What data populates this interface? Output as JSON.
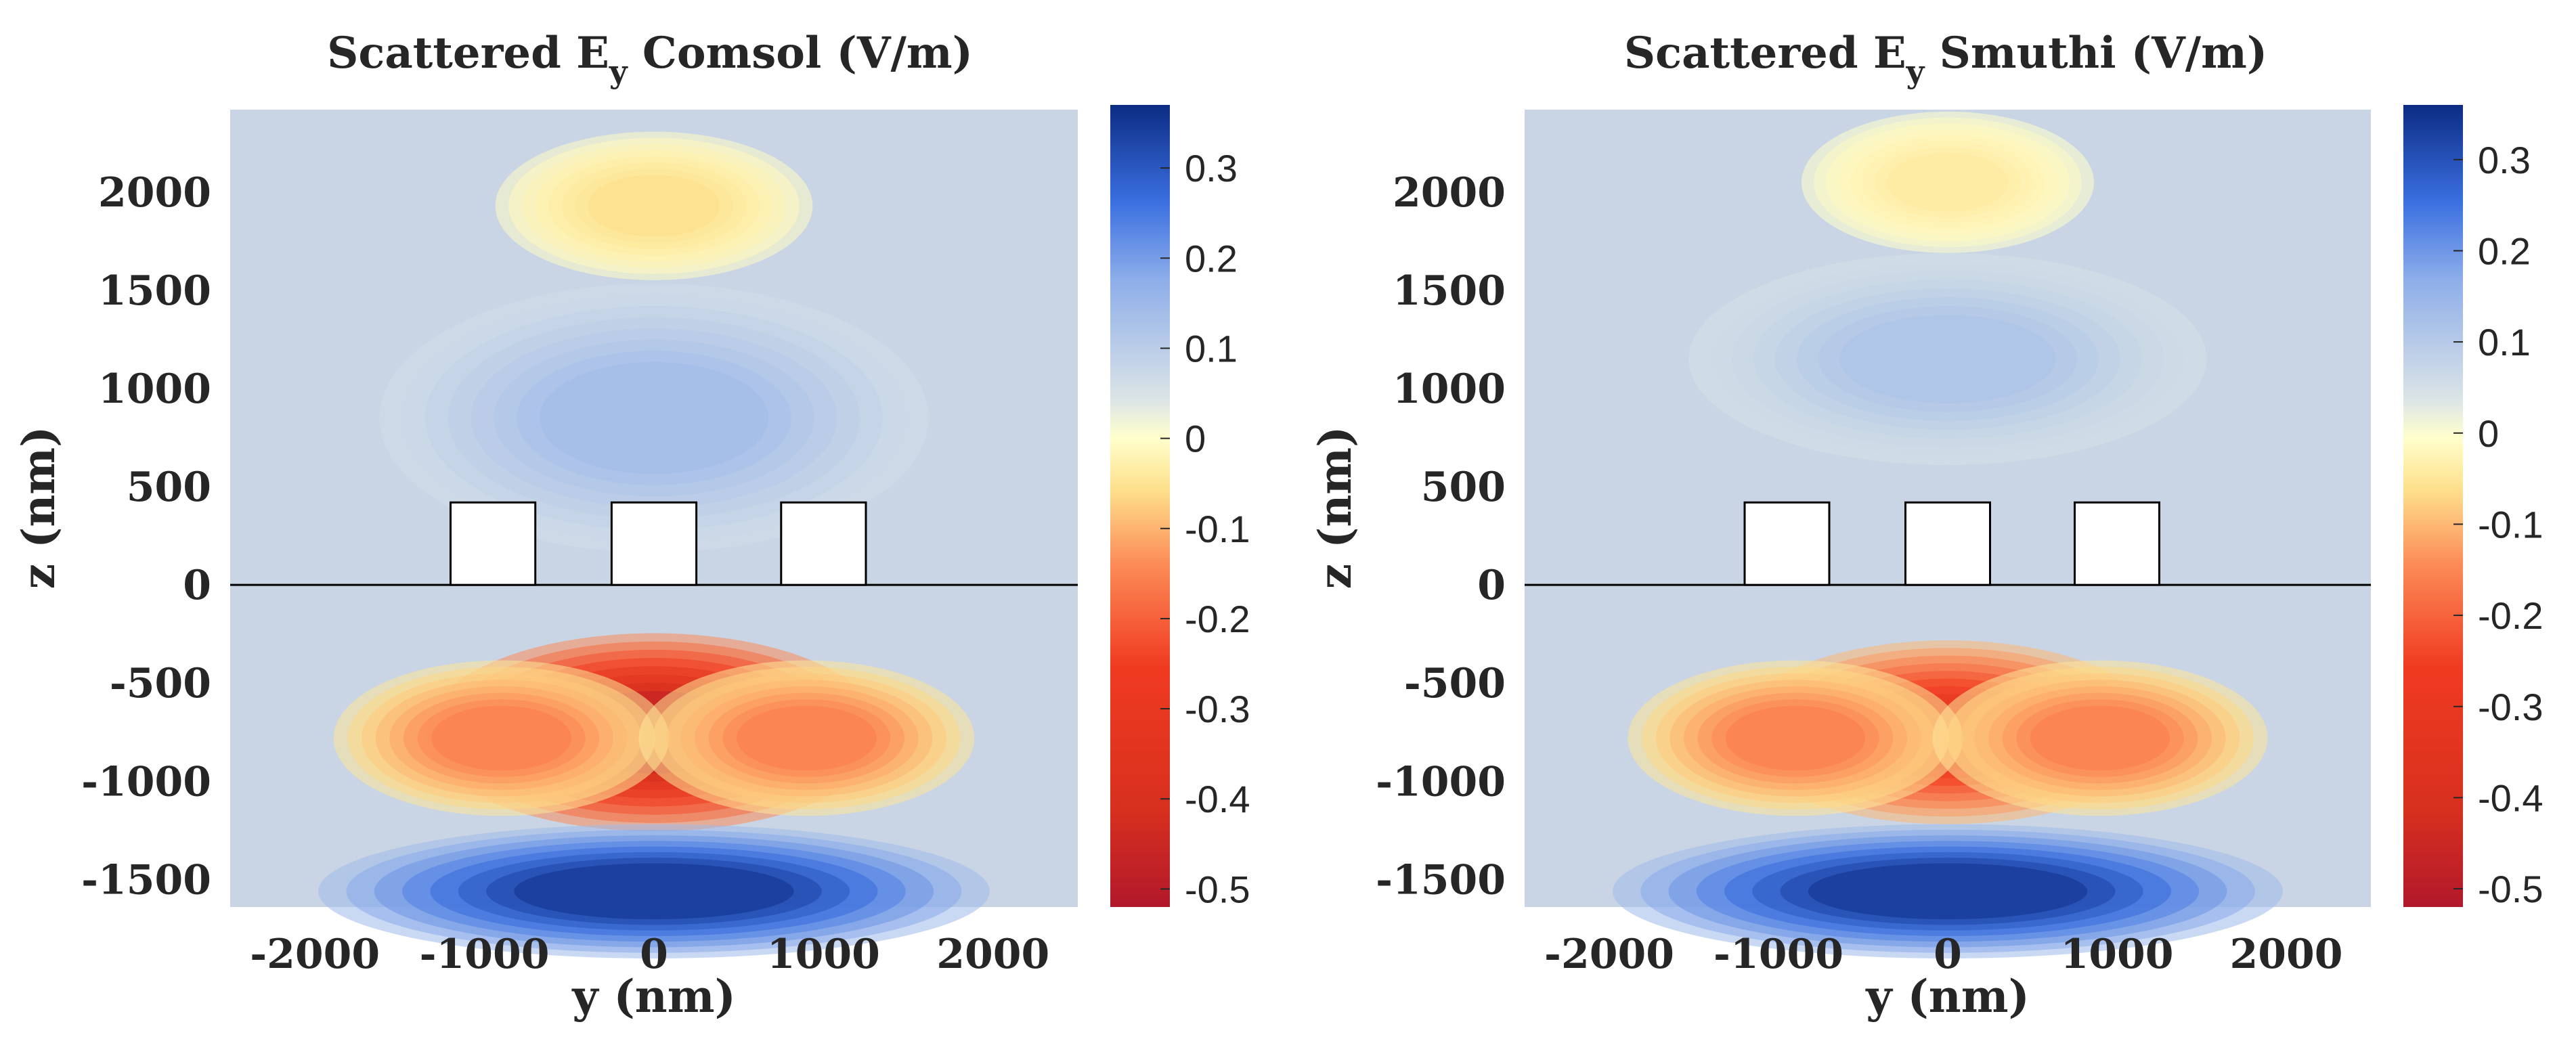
{
  "chart_data": [
    {
      "type": "heatmap",
      "title": {
        "prefix": "Scattered E",
        "sub": "y",
        "suffix": " Comsol (V/m)"
      },
      "xlabel": "y (nm)",
      "ylabel": "z (nm)",
      "xlim": [
        -2500,
        2500
      ],
      "ylim": [
        -1640,
        2420
      ],
      "xticks": [
        -2000,
        -1000,
        0,
        1000,
        2000
      ],
      "xtick_labels": [
        "-2000",
        "-1000",
        "0",
        "1000",
        "2000"
      ],
      "yticks": [
        2000,
        1500,
        1000,
        500,
        0,
        -500,
        -1000,
        -1500
      ],
      "ytick_labels": [
        "2000",
        "1500",
        "1000",
        "500",
        "0",
        "-500",
        "-1000",
        "-1500"
      ],
      "colorbar": {
        "range": [
          -0.52,
          0.37
        ],
        "ticks": [
          0.3,
          0.2,
          0.1,
          0,
          -0.1,
          -0.2,
          -0.3,
          -0.4,
          -0.5
        ],
        "tick_labels": [
          "0.3",
          "0.2",
          "0.1",
          "0",
          "-0.1",
          "-0.2",
          "-0.3",
          "-0.4",
          "-0.5"
        ]
      },
      "interface_z": 0,
      "scatterers": [
        {
          "y_min": -1200,
          "y_max": -700,
          "z_min": 0,
          "z_max": 420
        },
        {
          "y_min": -250,
          "y_max": 250,
          "z_min": 0,
          "z_max": 420
        },
        {
          "y_min": 750,
          "y_max": 1250,
          "z_min": 0,
          "z_max": 420
        }
      ],
      "field_features": [
        {
          "y": 0,
          "z": -750,
          "value": -0.5,
          "sy": 750,
          "sz": 280
        },
        {
          "y": -900,
          "z": -780,
          "value": -0.2,
          "sy": 550,
          "sz": 220
        },
        {
          "y": 900,
          "z": -780,
          "value": -0.2,
          "sy": 550,
          "sz": 220
        },
        {
          "y": 0,
          "z": -1560,
          "value": 0.36,
          "sy": 1100,
          "sz": 190
        },
        {
          "y": 0,
          "z": 1930,
          "value": -0.08,
          "sy": 520,
          "sz": 210
        },
        {
          "y": 0,
          "z": 850,
          "value": 0.12,
          "sy": 900,
          "sz": 380
        }
      ]
    },
    {
      "type": "heatmap",
      "title": {
        "prefix": "Scattered E",
        "sub": "y",
        "suffix": " Smuthi (V/m)"
      },
      "xlabel": "y (nm)",
      "ylabel": "z (nm)",
      "xlim": [
        -2500,
        2500
      ],
      "ylim": [
        -1640,
        2420
      ],
      "xticks": [
        -2000,
        -1000,
        0,
        1000,
        2000
      ],
      "xtick_labels": [
        "-2000",
        "-1000",
        "0",
        "1000",
        "2000"
      ],
      "yticks": [
        2000,
        1500,
        1000,
        500,
        0,
        -500,
        -1000,
        -1500
      ],
      "ytick_labels": [
        "2000",
        "1500",
        "1000",
        "500",
        "0",
        "-500",
        "-1000",
        "-1500"
      ],
      "colorbar": {
        "range": [
          -0.52,
          0.36
        ],
        "ticks": [
          0.3,
          0.2,
          0.1,
          0,
          -0.1,
          -0.2,
          -0.3,
          -0.4,
          -0.5
        ],
        "tick_labels": [
          "0.3",
          "0.2",
          "0.1",
          "0",
          "-0.1",
          "-0.2",
          "-0.3",
          "-0.4",
          "-0.5"
        ]
      },
      "interface_z": 0,
      "scatterers": [
        {
          "y_min": -1200,
          "y_max": -700,
          "z_min": 0,
          "z_max": 420
        },
        {
          "y_min": -250,
          "y_max": 250,
          "z_min": 0,
          "z_max": 420
        },
        {
          "y_min": 750,
          "y_max": 1250,
          "z_min": 0,
          "z_max": 420
        }
      ],
      "field_features": [
        {
          "y": 0,
          "z": -750,
          "value": -0.36,
          "sy": 700,
          "sz": 260
        },
        {
          "y": -900,
          "z": -780,
          "value": -0.2,
          "sy": 550,
          "sz": 220
        },
        {
          "y": 900,
          "z": -780,
          "value": -0.2,
          "sy": 550,
          "sz": 220
        },
        {
          "y": 0,
          "z": -1560,
          "value": 0.36,
          "sy": 1100,
          "sz": 190
        },
        {
          "y": 0,
          "z": 2050,
          "value": -0.06,
          "sy": 480,
          "sz": 200
        },
        {
          "y": 0,
          "z": 1150,
          "value": 0.1,
          "sy": 850,
          "sz": 300
        }
      ]
    }
  ]
}
